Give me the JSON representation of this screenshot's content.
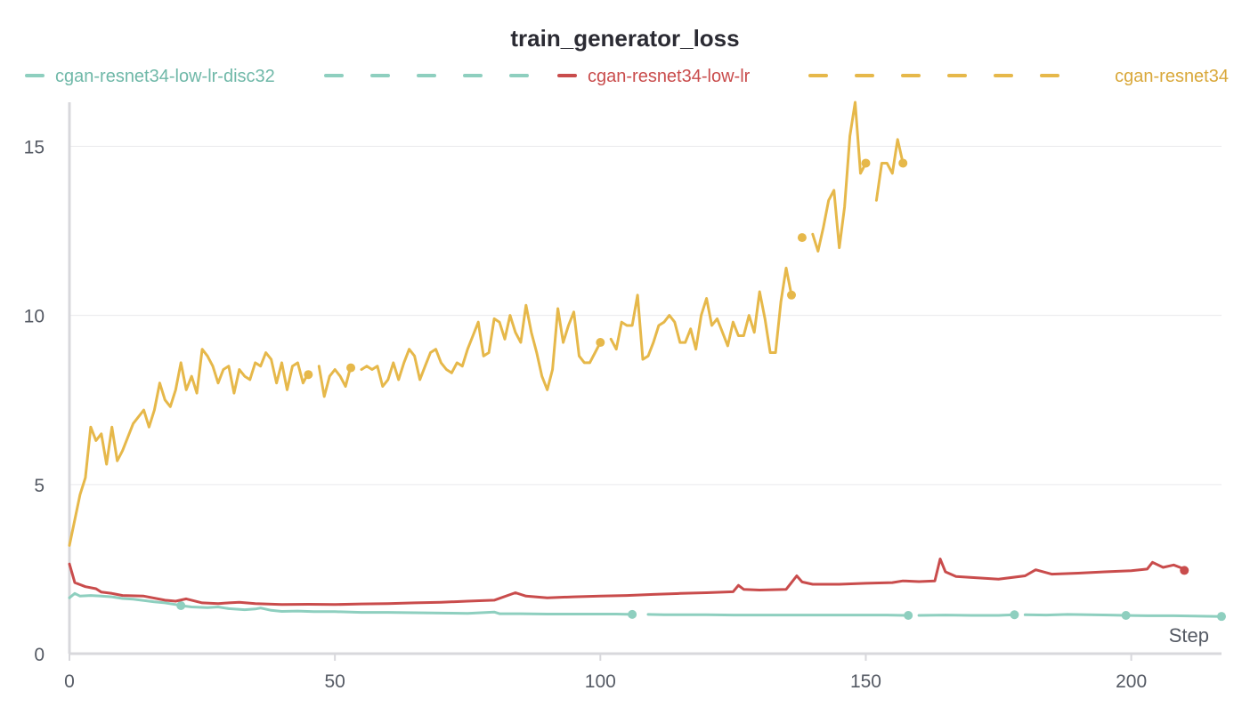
{
  "chart_data": {
    "type": "line",
    "title": "train_generator_loss",
    "xlabel": "Step",
    "ylabel": "",
    "xlim": [
      0,
      217
    ],
    "ylim": [
      0,
      16.3
    ],
    "xticks": [
      0,
      50,
      100,
      150,
      200
    ],
    "yticks": [
      0,
      5,
      10,
      15
    ],
    "grid": true,
    "legend_position": "top",
    "series": [
      {
        "name": "cgan-resnet34-low-lr-disc32",
        "color": "#8ecfbf",
        "points": [
          [
            0,
            1.65
          ],
          [
            1,
            1.78
          ],
          [
            2,
            1.7
          ],
          [
            4,
            1.72
          ],
          [
            6,
            1.7
          ],
          [
            8,
            1.68
          ],
          [
            10,
            1.63
          ],
          [
            12,
            1.61
          ],
          [
            14,
            1.57
          ],
          [
            16,
            1.53
          ],
          [
            18,
            1.5
          ],
          [
            20,
            1.45
          ],
          [
            21,
            1.42
          ],
          [
            23,
            1.38
          ],
          [
            26,
            1.36
          ],
          [
            28,
            1.38
          ],
          [
            30,
            1.33
          ],
          [
            33,
            1.3
          ],
          [
            35,
            1.32
          ],
          [
            36,
            1.35
          ],
          [
            38,
            1.28
          ],
          [
            40,
            1.25
          ],
          [
            43,
            1.26
          ],
          [
            46,
            1.24
          ],
          [
            50,
            1.24
          ],
          [
            55,
            1.22
          ],
          [
            60,
            1.22
          ],
          [
            65,
            1.21
          ],
          [
            70,
            1.2
          ],
          [
            75,
            1.19
          ],
          [
            80,
            1.23
          ],
          [
            81,
            1.18
          ],
          [
            85,
            1.18
          ],
          [
            90,
            1.17
          ],
          [
            95,
            1.17
          ],
          [
            100,
            1.17
          ],
          [
            103,
            1.17
          ],
          [
            106,
            1.16
          ],
          null,
          [
            109,
            1.16
          ],
          [
            112,
            1.15
          ],
          [
            116,
            1.15
          ],
          [
            120,
            1.15
          ],
          [
            125,
            1.14
          ],
          [
            130,
            1.14
          ],
          [
            135,
            1.14
          ],
          [
            140,
            1.14
          ],
          [
            145,
            1.14
          ],
          [
            150,
            1.14
          ],
          [
            154,
            1.14
          ],
          [
            158,
            1.13
          ],
          null,
          [
            160,
            1.13
          ],
          [
            165,
            1.14
          ],
          [
            170,
            1.13
          ],
          [
            175,
            1.13
          ],
          [
            178,
            1.15
          ],
          null,
          [
            180,
            1.15
          ],
          [
            184,
            1.14
          ],
          [
            188,
            1.16
          ],
          [
            192,
            1.15
          ],
          [
            196,
            1.14
          ],
          [
            199,
            1.13
          ],
          [
            203,
            1.12
          ],
          [
            208,
            1.12
          ],
          [
            212,
            1.11
          ],
          [
            217,
            1.1
          ]
        ],
        "markers": [
          [
            21,
            1.42
          ],
          [
            106,
            1.16
          ],
          [
            158,
            1.13
          ],
          [
            178,
            1.15
          ],
          [
            199,
            1.13
          ],
          [
            217,
            1.1
          ]
        ]
      },
      {
        "name": "cgan-resnet34-low-lr",
        "color": "#c94c4c",
        "points": [
          [
            0,
            2.65
          ],
          [
            1,
            2.1
          ],
          [
            3,
            1.98
          ],
          [
            5,
            1.92
          ],
          [
            6,
            1.82
          ],
          [
            8,
            1.78
          ],
          [
            10,
            1.72
          ],
          [
            14,
            1.7
          ],
          [
            18,
            1.58
          ],
          [
            20,
            1.55
          ],
          [
            22,
            1.62
          ],
          [
            25,
            1.5
          ],
          [
            28,
            1.48
          ],
          [
            30,
            1.5
          ],
          [
            32,
            1.52
          ],
          [
            35,
            1.48
          ],
          [
            40,
            1.45
          ],
          [
            45,
            1.46
          ],
          [
            50,
            1.45
          ],
          [
            55,
            1.47
          ],
          [
            60,
            1.48
          ],
          [
            65,
            1.5
          ],
          [
            70,
            1.52
          ],
          [
            75,
            1.55
          ],
          [
            80,
            1.58
          ],
          [
            84,
            1.8
          ],
          [
            86,
            1.7
          ],
          [
            90,
            1.65
          ],
          [
            95,
            1.68
          ],
          [
            100,
            1.7
          ],
          [
            105,
            1.72
          ],
          [
            110,
            1.75
          ],
          [
            115,
            1.78
          ],
          [
            120,
            1.8
          ],
          [
            125,
            1.83
          ],
          [
            126,
            2.02
          ],
          [
            127,
            1.9
          ],
          [
            130,
            1.88
          ],
          [
            135,
            1.9
          ],
          [
            137,
            2.3
          ],
          [
            138,
            2.12
          ],
          [
            140,
            2.05
          ],
          [
            145,
            2.05
          ],
          [
            150,
            2.08
          ],
          [
            155,
            2.1
          ],
          [
            157,
            2.15
          ],
          [
            160,
            2.13
          ],
          [
            163,
            2.15
          ],
          [
            164,
            2.8
          ],
          [
            165,
            2.42
          ],
          [
            167,
            2.28
          ],
          [
            170,
            2.25
          ],
          [
            175,
            2.2
          ],
          [
            180,
            2.3
          ],
          [
            182,
            2.48
          ],
          [
            185,
            2.35
          ],
          [
            190,
            2.38
          ],
          [
            195,
            2.42
          ],
          [
            200,
            2.45
          ],
          [
            203,
            2.5
          ],
          [
            204,
            2.7
          ],
          [
            206,
            2.55
          ],
          [
            208,
            2.62
          ],
          [
            210,
            2.5
          ]
        ],
        "markers": [
          [
            210,
            2.46
          ]
        ]
      },
      {
        "name": "cgan-resnet34",
        "color": "#e6b84a",
        "points": [
          [
            0,
            3.2
          ],
          [
            2,
            4.7
          ],
          [
            3,
            5.2
          ],
          [
            4,
            6.7
          ],
          [
            5,
            6.3
          ],
          [
            6,
            6.5
          ],
          [
            7,
            5.6
          ],
          [
            8,
            6.7
          ],
          [
            9,
            5.7
          ],
          [
            10,
            6.0
          ],
          [
            12,
            6.8
          ],
          [
            14,
            7.2
          ],
          [
            15,
            6.7
          ],
          [
            16,
            7.2
          ],
          [
            17,
            8.0
          ],
          [
            18,
            7.5
          ],
          [
            19,
            7.3
          ],
          [
            20,
            7.8
          ],
          [
            21,
            8.6
          ],
          [
            22,
            7.8
          ],
          [
            23,
            8.2
          ],
          [
            24,
            7.7
          ],
          [
            25,
            9.0
          ],
          [
            26,
            8.8
          ],
          [
            27,
            8.5
          ],
          [
            28,
            8.0
          ],
          [
            29,
            8.4
          ],
          [
            30,
            8.5
          ],
          [
            31,
            7.7
          ],
          [
            32,
            8.4
          ],
          [
            33,
            8.2
          ],
          [
            34,
            8.1
          ],
          [
            35,
            8.6
          ],
          [
            36,
            8.5
          ],
          [
            37,
            8.9
          ],
          [
            38,
            8.7
          ],
          [
            39,
            8.0
          ],
          [
            40,
            8.6
          ],
          [
            41,
            7.8
          ],
          [
            42,
            8.5
          ],
          [
            43,
            8.6
          ],
          [
            44,
            8.0
          ],
          [
            45,
            8.3
          ],
          null,
          [
            47,
            8.5
          ],
          [
            48,
            7.6
          ],
          [
            49,
            8.2
          ],
          [
            50,
            8.4
          ],
          [
            51,
            8.2
          ],
          [
            52,
            7.9
          ],
          [
            53,
            8.5
          ],
          null,
          [
            55,
            8.4
          ],
          [
            56,
            8.5
          ],
          [
            57,
            8.4
          ],
          [
            58,
            8.5
          ],
          [
            59,
            7.9
          ],
          [
            60,
            8.1
          ],
          [
            61,
            8.6
          ],
          [
            62,
            8.1
          ],
          [
            63,
            8.6
          ],
          [
            64,
            9.0
          ],
          [
            65,
            8.8
          ],
          [
            66,
            8.1
          ],
          [
            67,
            8.5
          ],
          [
            68,
            8.9
          ],
          [
            69,
            9.0
          ],
          [
            70,
            8.6
          ],
          [
            71,
            8.4
          ],
          [
            72,
            8.3
          ],
          [
            73,
            8.6
          ],
          [
            74,
            8.5
          ],
          [
            75,
            9.0
          ],
          [
            76,
            9.4
          ],
          [
            77,
            9.8
          ],
          [
            78,
            8.8
          ],
          [
            79,
            8.9
          ],
          [
            80,
            9.9
          ],
          [
            81,
            9.8
          ],
          [
            82,
            9.3
          ],
          [
            83,
            10.0
          ],
          [
            84,
            9.5
          ],
          [
            85,
            9.2
          ],
          [
            86,
            10.3
          ],
          [
            87,
            9.5
          ],
          [
            88,
            8.9
          ],
          [
            89,
            8.2
          ],
          [
            90,
            7.8
          ],
          [
            91,
            8.4
          ],
          [
            92,
            10.2
          ],
          [
            93,
            9.2
          ],
          [
            94,
            9.7
          ],
          [
            95,
            10.1
          ],
          [
            96,
            8.8
          ],
          [
            97,
            8.6
          ],
          [
            98,
            8.6
          ],
          [
            99,
            8.9
          ],
          [
            100,
            9.2
          ],
          null,
          [
            102,
            9.3
          ],
          [
            103,
            9.0
          ],
          [
            104,
            9.8
          ],
          [
            105,
            9.7
          ],
          [
            106,
            9.7
          ],
          [
            107,
            10.6
          ],
          [
            108,
            8.7
          ],
          [
            109,
            8.8
          ],
          [
            110,
            9.2
          ],
          [
            111,
            9.7
          ],
          [
            112,
            9.8
          ],
          [
            113,
            10.0
          ],
          [
            114,
            9.8
          ],
          [
            115,
            9.2
          ],
          [
            116,
            9.2
          ],
          [
            117,
            9.6
          ],
          [
            118,
            9.0
          ],
          [
            119,
            10.0
          ],
          [
            120,
            10.5
          ],
          [
            121,
            9.7
          ],
          [
            122,
            9.9
          ],
          [
            123,
            9.5
          ],
          [
            124,
            9.1
          ],
          [
            125,
            9.8
          ],
          [
            126,
            9.4
          ],
          [
            127,
            9.4
          ],
          [
            128,
            10.0
          ],
          [
            129,
            9.5
          ],
          [
            130,
            10.7
          ],
          [
            131,
            9.9
          ],
          [
            132,
            8.9
          ],
          [
            133,
            8.9
          ],
          [
            134,
            10.4
          ],
          [
            135,
            11.4
          ],
          [
            136,
            10.6
          ],
          null,
          [
            140,
            12.4
          ],
          [
            141,
            11.9
          ],
          [
            142,
            12.6
          ],
          [
            143,
            13.4
          ],
          [
            144,
            13.7
          ],
          [
            145,
            12.0
          ],
          [
            146,
            13.2
          ],
          [
            147,
            15.3
          ],
          [
            148,
            16.3
          ],
          [
            149,
            14.2
          ],
          [
            150,
            14.5
          ],
          null,
          [
            152,
            13.4
          ],
          [
            153,
            14.5
          ],
          [
            154,
            14.5
          ],
          [
            155,
            14.2
          ],
          [
            156,
            15.2
          ],
          [
            157,
            14.5
          ]
        ],
        "markers": [
          [
            45,
            8.25
          ],
          [
            53,
            8.45
          ],
          [
            100,
            9.2
          ],
          [
            136,
            10.6
          ],
          [
            138,
            12.3
          ],
          [
            150,
            14.5
          ],
          [
            157,
            14.5
          ]
        ]
      }
    ]
  }
}
